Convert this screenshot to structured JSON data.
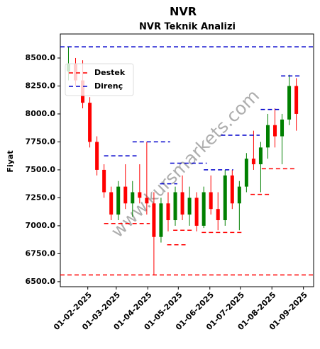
{
  "chart_data": {
    "type": "candlestick",
    "title": "NVR",
    "subtitle": "NVR Teknik Analizi",
    "ylabel": "Fiyat",
    "watermark": "www.kursmarkets.com",
    "x": [
      "2025-01-13",
      "2025-01-20",
      "2025-01-27",
      "2025-02-03",
      "2025-02-10",
      "2025-02-17",
      "2025-02-24",
      "2025-03-03",
      "2025-03-10",
      "2025-03-17",
      "2025-03-24",
      "2025-03-31",
      "2025-04-07",
      "2025-04-14",
      "2025-04-21",
      "2025-04-28",
      "2025-05-05",
      "2025-05-12",
      "2025-05-19",
      "2025-05-26",
      "2025-06-02",
      "2025-06-09",
      "2025-06-16",
      "2025-06-23",
      "2025-06-30",
      "2025-07-07",
      "2025-07-14",
      "2025-07-21",
      "2025-07-28",
      "2025-08-04",
      "2025-08-11",
      "2025-08-18",
      "2025-08-25"
    ],
    "open": [
      8380,
      8450,
      8300,
      8100,
      7750,
      7500,
      7300,
      7100,
      7350,
      7200,
      7300,
      7250,
      7200,
      6900,
      7200,
      7050,
      7300,
      7100,
      7250,
      7000,
      7300,
      7150,
      7050,
      7450,
      7200,
      7350,
      7600,
      7550,
      7700,
      7900,
      7800,
      7950,
      8250
    ],
    "high": [
      8600,
      8500,
      8480,
      8150,
      7800,
      7550,
      7350,
      7400,
      7550,
      7400,
      7550,
      7750,
      7300,
      7250,
      7300,
      7350,
      7450,
      7350,
      7300,
      7350,
      7450,
      7300,
      7500,
      7500,
      7400,
      7650,
      7850,
      7750,
      8000,
      8050,
      8000,
      8350,
      8320
    ],
    "low": [
      8300,
      8250,
      8050,
      7700,
      7450,
      7250,
      7050,
      7050,
      7150,
      7080,
      7200,
      7100,
      6560,
      6850,
      6950,
      7000,
      7050,
      7000,
      6950,
      6980,
      7100,
      6960,
      7000,
      7150,
      6960,
      7300,
      7500,
      7300,
      7600,
      7700,
      7550,
      7900,
      7850
    ],
    "close": [
      8450,
      8300,
      8100,
      7750,
      7500,
      7300,
      7100,
      7350,
      7200,
      7300,
      7250,
      7200,
      6900,
      7200,
      7050,
      7300,
      7100,
      7250,
      7000,
      7300,
      7150,
      7050,
      7450,
      7200,
      7350,
      7600,
      7550,
      7700,
      7900,
      7800,
      7950,
      8250,
      8000
    ],
    "up_color": "#008000",
    "down_color": "#ff0000",
    "support": {
      "name": "Destek",
      "color": "#ff0000",
      "value": 6560,
      "segments": [
        {
          "start": "2025-01-13",
          "end": "2025-02-02",
          "value": 8370
        },
        {
          "start": "2025-02-17",
          "end": "2025-04-03",
          "value": 7020
        },
        {
          "start": "2025-04-20",
          "end": "2025-05-10",
          "value": 6830
        },
        {
          "start": "2025-04-26",
          "end": "2025-05-15",
          "value": 6960
        },
        {
          "start": "2025-05-24",
          "end": "2025-07-03",
          "value": 6940
        },
        {
          "start": "2025-07-11",
          "end": "2025-07-31",
          "value": 7280
        },
        {
          "start": "2025-07-22",
          "end": "2025-08-24",
          "value": 7510
        }
      ]
    },
    "resistance": {
      "name": "Direnç",
      "color": "#0000cc",
      "value": 8600,
      "segments": [
        {
          "start": "2025-02-17",
          "end": "2025-03-21",
          "value": 7625
        },
        {
          "start": "2025-03-17",
          "end": "2025-04-23",
          "value": 7750
        },
        {
          "start": "2025-04-13",
          "end": "2025-04-30",
          "value": 7375
        },
        {
          "start": "2025-04-23",
          "end": "2025-05-29",
          "value": 7560
        },
        {
          "start": "2025-05-26",
          "end": "2025-06-24",
          "value": 7500
        },
        {
          "start": "2025-06-12",
          "end": "2025-07-20",
          "value": 7810
        },
        {
          "start": "2025-07-21",
          "end": "2025-08-08",
          "value": 8040
        },
        {
          "start": "2025-08-10",
          "end": "2025-08-29",
          "value": 8340
        }
      ]
    },
    "xlim": [
      "2025-01-05",
      "2025-09-11"
    ],
    "xticks": [
      {
        "value": "2025-02-01",
        "label": "01-02-2025"
      },
      {
        "value": "2025-03-01",
        "label": "01-03-2025"
      },
      {
        "value": "2025-04-01",
        "label": "01-04-2025"
      },
      {
        "value": "2025-05-01",
        "label": "01-05-2025"
      },
      {
        "value": "2025-06-01",
        "label": "01-06-2025"
      },
      {
        "value": "2025-07-01",
        "label": "01-07-2025"
      },
      {
        "value": "2025-08-01",
        "label": "01-08-2025"
      },
      {
        "value": "2025-09-01",
        "label": "01-09-2025"
      }
    ],
    "ylim": [
      6455,
      8715
    ],
    "yticks": [
      {
        "value": 6500,
        "label": "6500.0"
      },
      {
        "value": 6750,
        "label": "6750.0"
      },
      {
        "value": 7000,
        "label": "7000.0"
      },
      {
        "value": 7250,
        "label": "7250.0"
      },
      {
        "value": 7500,
        "label": "7500.0"
      },
      {
        "value": 7750,
        "label": "7750.0"
      },
      {
        "value": 8000,
        "label": "8000.0"
      },
      {
        "value": 8250,
        "label": "8250.0"
      },
      {
        "value": 8500,
        "label": "8500.0"
      }
    ]
  }
}
